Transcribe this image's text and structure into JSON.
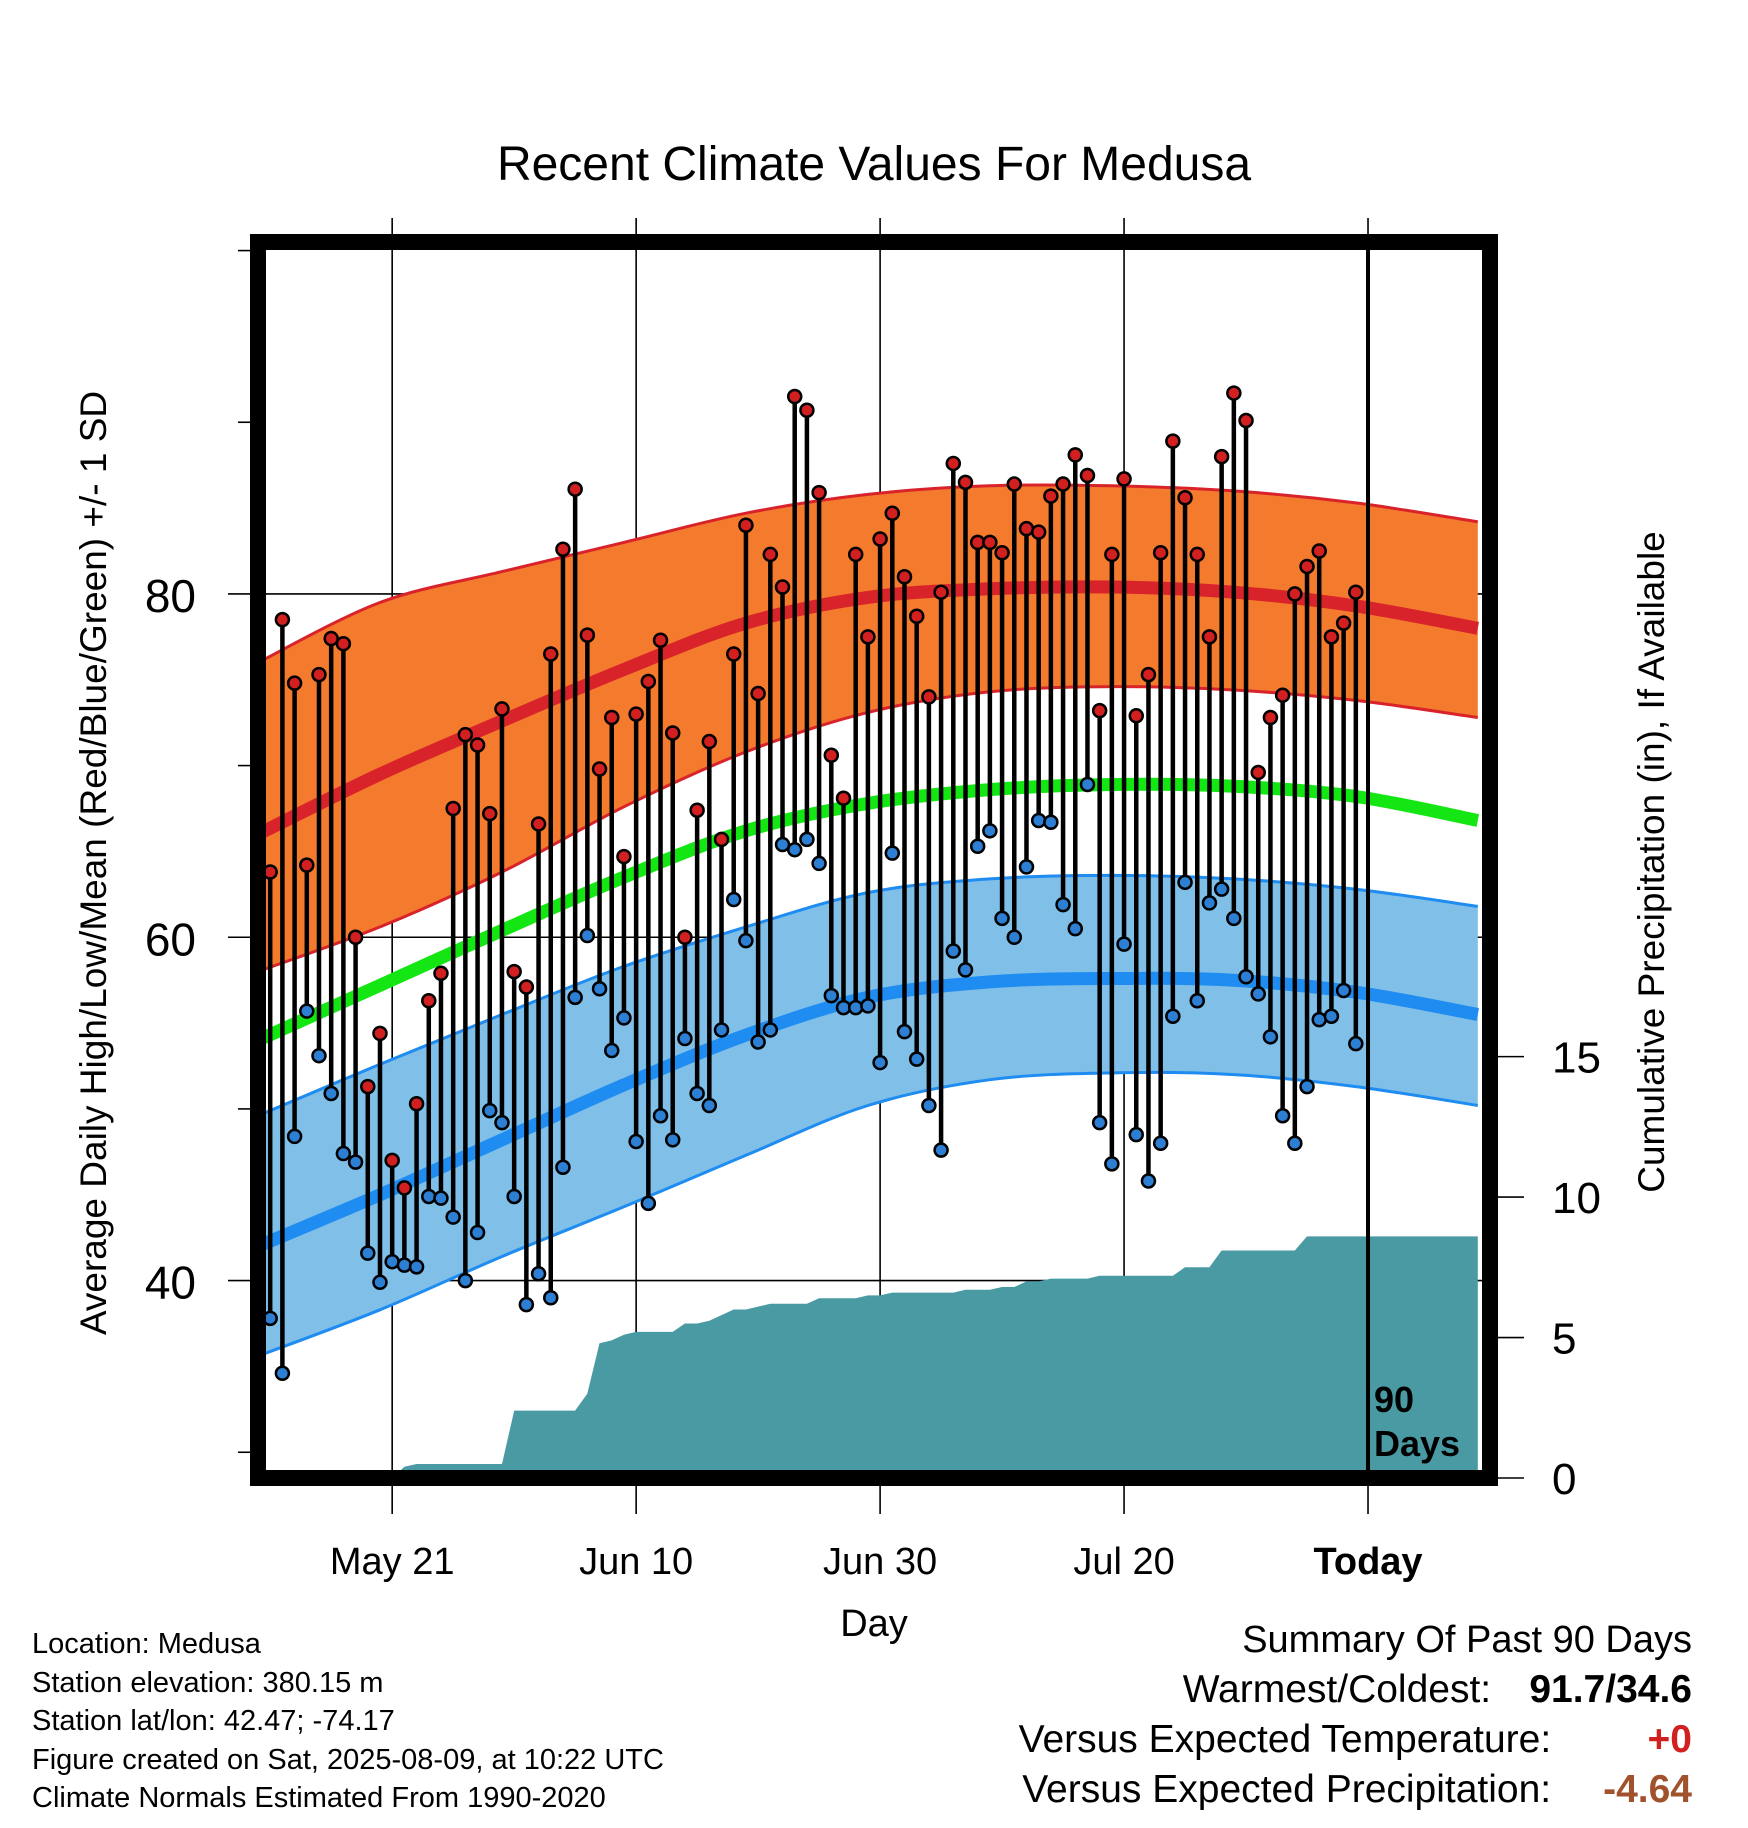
{
  "chart_data": {
    "type": "line",
    "title": "Recent Climate Values For Medusa",
    "xlabel": "Day",
    "ylabel": "Average Daily High/Low/Mean (Red/Blue/Green) +/- 1 SD",
    "y2label": "Cumulative Precipitation (in), If Available",
    "ylim": [
      28.5,
      100.5
    ],
    "y2lim": [
      0,
      44
    ],
    "xlim": [
      0,
      101
    ],
    "y_ticks": [
      40,
      60,
      80
    ],
    "y2_ticks": [
      0,
      5,
      10,
      15
    ],
    "x_ticks": [
      {
        "label": "May 21",
        "day": 11
      },
      {
        "label": "Jun 10",
        "day": 31
      },
      {
        "label": "Jun 30",
        "day": 51
      },
      {
        "label": "Jul 20",
        "day": 71
      },
      {
        "label": "Today",
        "day": 91
      }
    ],
    "today_marker": {
      "day": 91,
      "label_line1": "90",
      "label_line2": "Days"
    },
    "grid": true,
    "colors": {
      "high_band": "#f47b2d",
      "high_line": "#d9232a",
      "high_edge": "#d9232a",
      "low_band": "#7fbfe8",
      "low_line": "#1e8cf0",
      "low_edge": "#1e8cf0",
      "mean_line": "#14e614",
      "precip_fill": "#4a9aa4",
      "high_point": "#d22020",
      "low_point": "#2d7fd4"
    },
    "normals": {
      "days": [
        0,
        10,
        20,
        30,
        40,
        50,
        60,
        70,
        80,
        90,
        100
      ],
      "high_mean": [
        66.0,
        69.5,
        72.6,
        75.6,
        78.3,
        79.8,
        80.3,
        80.4,
        80.1,
        79.3,
        78.0
      ],
      "high_upper": [
        76.0,
        79.5,
        81.3,
        83.0,
        84.7,
        85.8,
        86.3,
        86.3,
        86.0,
        85.3,
        84.2
      ],
      "high_lower": [
        58.0,
        60.6,
        63.8,
        67.6,
        70.8,
        73.1,
        74.3,
        74.6,
        74.4,
        73.8,
        72.8
      ],
      "low_mean": [
        42.0,
        45.0,
        48.2,
        51.4,
        54.3,
        56.5,
        57.4,
        57.6,
        57.5,
        56.8,
        55.5
      ],
      "low_upper": [
        49.6,
        52.6,
        55.5,
        58.3,
        60.6,
        62.6,
        63.4,
        63.6,
        63.4,
        62.8,
        61.8
      ],
      "low_lower": [
        35.6,
        38.3,
        41.4,
        44.3,
        47.3,
        50.2,
        51.7,
        52.1,
        52.0,
        51.3,
        50.2
      ],
      "mean": [
        54.0,
        57.2,
        60.4,
        63.5,
        66.2,
        67.8,
        68.6,
        68.9,
        68.8,
        68.2,
        66.8
      ]
    },
    "series": [
      {
        "name": "High",
        "values": [
          63.8,
          78.5,
          74.8,
          64.2,
          75.3,
          77.4,
          77.1,
          60.0,
          51.3,
          54.4,
          47.0,
          45.4,
          50.3,
          56.3,
          57.9,
          67.5,
          71.8,
          71.2,
          67.2,
          73.3,
          58.0,
          57.1,
          66.6,
          76.5,
          82.6,
          86.1,
          77.6,
          69.8,
          72.8,
          64.7,
          73.0,
          74.9,
          77.3,
          71.9,
          60.0,
          67.4,
          71.4,
          65.7,
          76.5,
          84.0,
          74.2,
          82.3,
          80.4,
          91.5,
          90.7,
          85.9,
          70.6,
          68.1,
          82.3,
          77.5,
          83.2,
          84.7,
          81.0,
          78.7,
          74.0,
          80.1,
          87.6,
          86.5,
          83.0,
          83.0,
          82.4,
          86.4,
          83.8,
          83.6,
          85.7,
          86.4,
          88.1,
          86.9,
          73.2,
          82.3,
          86.7,
          72.9,
          75.3,
          82.4,
          88.9,
          85.6,
          82.3,
          77.5,
          88.0,
          91.7,
          90.1,
          69.6,
          72.8,
          74.1,
          80.0,
          81.6,
          82.5,
          77.5,
          78.3,
          80.1
        ]
      },
      {
        "name": "Low",
        "values": [
          37.8,
          34.6,
          48.4,
          55.7,
          53.1,
          50.9,
          47.4,
          46.9,
          41.6,
          39.9,
          41.1,
          40.9,
          40.8,
          44.9,
          44.8,
          43.7,
          40.0,
          42.8,
          49.9,
          49.2,
          44.9,
          38.6,
          40.4,
          39.0,
          46.6,
          56.5,
          60.1,
          57.0,
          53.4,
          55.3,
          48.1,
          44.5,
          49.6,
          48.2,
          54.1,
          50.9,
          50.2,
          54.6,
          62.2,
          59.8,
          53.9,
          54.6,
          65.4,
          65.1,
          65.7,
          64.3,
          56.6,
          55.9,
          55.9,
          56.0,
          52.7,
          64.9,
          54.5,
          52.9,
          50.2,
          47.6,
          59.2,
          58.1,
          65.3,
          66.2,
          61.1,
          60.0,
          64.1,
          66.8,
          66.7,
          61.9,
          60.5,
          68.9,
          49.2,
          46.8,
          59.6,
          48.5,
          45.8,
          48.0,
          55.4,
          63.2,
          56.3,
          62.0,
          62.8,
          61.1,
          57.7,
          56.7,
          54.2,
          49.6,
          48.0,
          51.3,
          55.2,
          55.4,
          56.9,
          53.8
        ]
      }
    ],
    "precip": {
      "days": [
        11,
        12,
        13,
        14,
        15,
        16,
        17,
        18,
        19,
        20,
        21,
        22,
        23,
        24,
        25,
        26,
        27,
        28,
        29,
        30,
        31,
        32,
        33,
        34,
        35,
        36,
        37,
        38,
        39,
        40,
        41,
        42,
        43,
        44,
        45,
        46,
        47,
        48,
        49,
        50,
        51,
        52,
        53,
        54,
        55,
        56,
        57,
        58,
        59,
        60,
        61,
        62,
        63,
        64,
        65,
        66,
        67,
        68,
        69,
        70,
        71,
        72,
        73,
        74,
        75,
        76,
        77,
        78,
        79,
        80,
        81,
        82,
        83,
        84,
        85,
        86,
        87,
        88,
        89,
        90,
        91,
        100
      ],
      "values": [
        0.0,
        0.4,
        0.5,
        0.5,
        0.5,
        0.5,
        0.5,
        0.5,
        0.5,
        0.5,
        2.4,
        2.4,
        2.4,
        2.4,
        2.4,
        2.4,
        3.0,
        4.8,
        4.9,
        5.1,
        5.2,
        5.2,
        5.2,
        5.2,
        5.5,
        5.5,
        5.6,
        5.8,
        6.0,
        6.0,
        6.1,
        6.2,
        6.2,
        6.2,
        6.2,
        6.4,
        6.4,
        6.4,
        6.4,
        6.5,
        6.5,
        6.6,
        6.6,
        6.6,
        6.6,
        6.6,
        6.6,
        6.7,
        6.7,
        6.7,
        6.8,
        6.8,
        7.0,
        7.0,
        7.1,
        7.1,
        7.1,
        7.1,
        7.2,
        7.2,
        7.2,
        7.2,
        7.2,
        7.2,
        7.2,
        7.5,
        7.5,
        7.5,
        8.1,
        8.1,
        8.1,
        8.1,
        8.1,
        8.1,
        8.1,
        8.6,
        8.6,
        8.6,
        8.6,
        8.6,
        8.6,
        8.6
      ]
    }
  },
  "summary": {
    "title": "Summary Of Past 90 Days",
    "warm_cold_label": "Warmest/Coldest:",
    "warm_cold_value": "91.7/34.6",
    "temp_label": "Versus Expected Temperature:",
    "temp_value": "+0",
    "temp_color": "#d22020",
    "precip_label": "Versus Expected Precipitation:",
    "precip_value": "-4.64",
    "precip_color": "#a0522d"
  },
  "station": {
    "location": "Location: Medusa",
    "elevation": "Station elevation: 380.15 m",
    "latlon": "Station lat/lon: 42.47; -74.17",
    "created": "Figure created on Sat, 2025-08-09, at 10:22 UTC",
    "normals": "Climate Normals Estimated From 1990-2020"
  }
}
